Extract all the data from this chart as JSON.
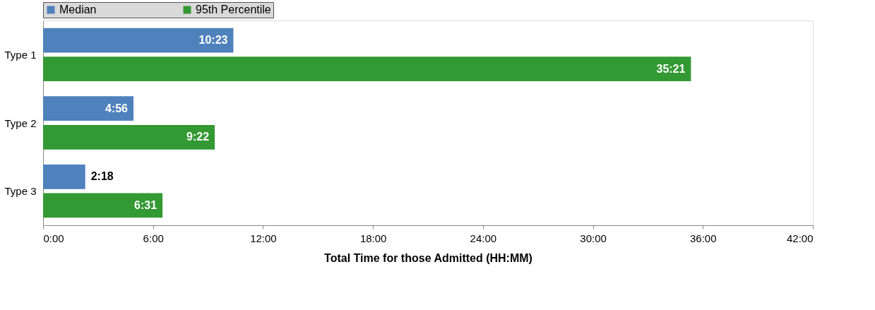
{
  "chart_data": {
    "type": "bar",
    "orientation": "horizontal",
    "xlabel": "Total Time for those Admitted (HH:MM)",
    "categories": [
      "Type 1",
      "Type 2",
      "Type 3"
    ],
    "series": [
      {
        "name": "Median",
        "color": "#4f81bd",
        "values": [
          10.383,
          4.933,
          2.3
        ],
        "value_labels": [
          "10:23",
          "4:56",
          "2:18"
        ]
      },
      {
        "name": "95th Percentile",
        "color": "#339933",
        "values": [
          35.35,
          9.367,
          6.517
        ],
        "value_labels": [
          "35:21",
          "9:22",
          "6:31"
        ]
      }
    ],
    "xlim": [
      0,
      42
    ],
    "xticks": [
      {
        "value": 0,
        "label": "0:00"
      },
      {
        "value": 6,
        "label": "6:00"
      },
      {
        "value": 12,
        "label": "12:00"
      },
      {
        "value": 18,
        "label": "18:00"
      },
      {
        "value": 24,
        "label": "24:00"
      },
      {
        "value": 30,
        "label": "30:00"
      },
      {
        "value": 36,
        "label": "36:00"
      },
      {
        "value": 42,
        "label": "42:00"
      }
    ],
    "legend": "top",
    "grid": false
  }
}
